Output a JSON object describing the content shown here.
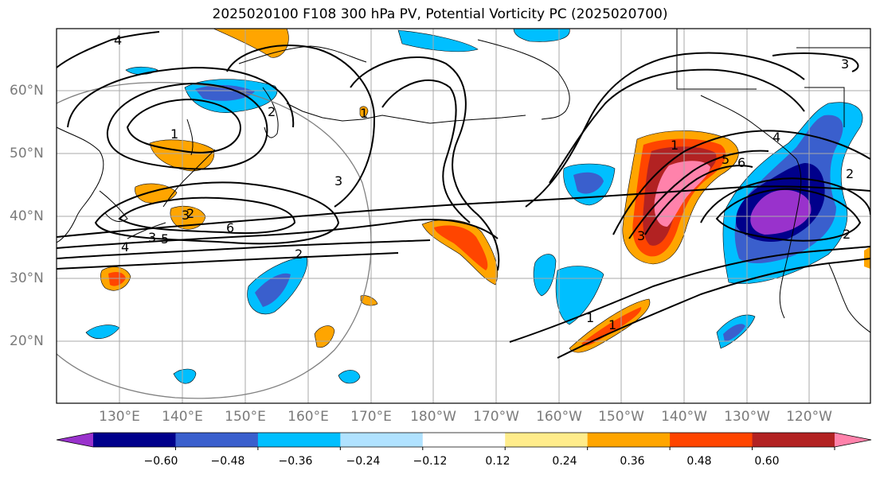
{
  "title": "2025020100 F108 300 hPa PV, Potential Vorticity PC (2025020700)",
  "lon_labels": [
    "130°E",
    "140°E",
    "150°E",
    "160°E",
    "170°E",
    "180°W",
    "170°W",
    "160°W",
    "150°W",
    "140°W",
    "130°W",
    "120°W"
  ],
  "lat_labels": [
    "60°N",
    "50°N",
    "40°N",
    "30°N",
    "20°N"
  ],
  "contour_labels": [
    "4",
    "1",
    "2",
    "3",
    "6",
    "5",
    "4",
    "3",
    "2",
    "1",
    "1",
    "3",
    "5",
    "6",
    "4",
    "2",
    "1",
    "1",
    "3",
    "2",
    "2",
    "3"
  ],
  "colorbar": {
    "ticks": [
      "−0.60",
      "−0.48",
      "−0.36",
      "−0.24",
      "−0.12",
      "0.12",
      "0.24",
      "0.36",
      "0.48",
      "0.60"
    ],
    "colors": [
      "#9932cc",
      "#00008b",
      "#3a5fcd",
      "#00bfff",
      "#b0e2ff",
      "#ffffff",
      "#ffec8b",
      "#ffa500",
      "#ff4500",
      "#b22222",
      "#ff82ab"
    ]
  }
}
